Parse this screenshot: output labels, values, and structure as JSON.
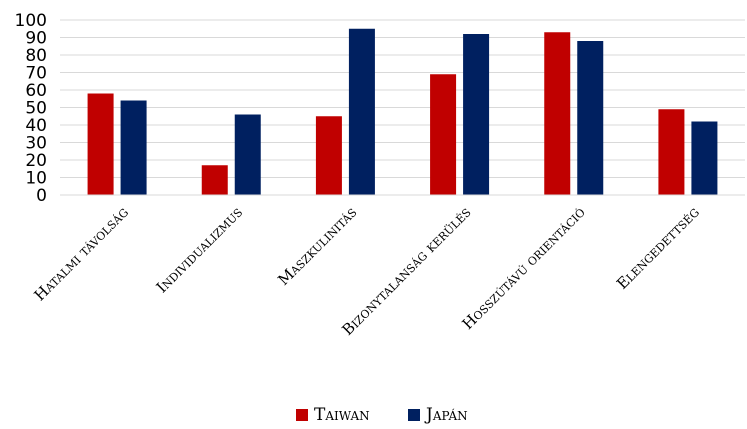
{
  "chart_data": {
    "type": "bar",
    "categories": [
      "Hatalmi távolság",
      "Individualizmus",
      "Maszkulinitás",
      "Bizonytalanság kerülés",
      "Hosszútávú orientáció",
      "Elengedettség"
    ],
    "series": [
      {
        "name": "Taiwan",
        "color": "#c00000",
        "values": [
          58,
          17,
          45,
          69,
          93,
          49
        ]
      },
      {
        "name": "Japán",
        "color": "#002060",
        "values": [
          54,
          46,
          95,
          92,
          88,
          42
        ]
      }
    ],
    "yticks": [
      0,
      10,
      20,
      30,
      40,
      50,
      60,
      70,
      80,
      90,
      100
    ],
    "ylim": [
      0,
      100
    ],
    "grid": true,
    "legend_position": "bottom"
  }
}
